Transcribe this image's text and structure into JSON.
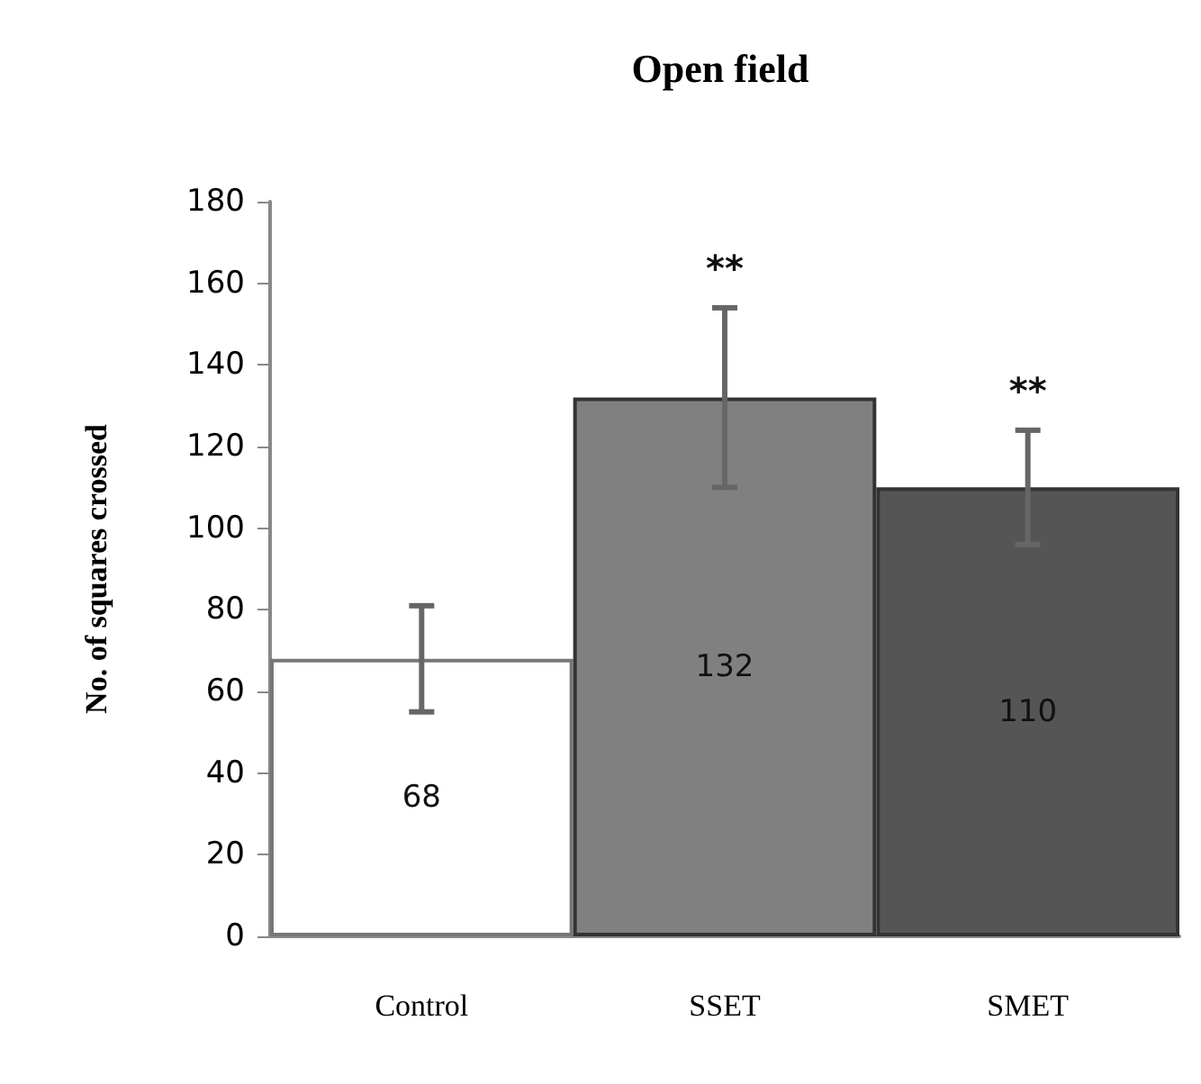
{
  "chart_data": {
    "type": "bar",
    "title": "Open field",
    "ylabel": "No. of squares crossed",
    "categories": [
      "Control",
      "SSET",
      "SMET"
    ],
    "values": [
      68,
      132,
      110
    ],
    "colors": [
      "#ffffff",
      "#808080",
      "#555555"
    ],
    "errors": [
      13,
      22,
      14
    ],
    "data_labels": true,
    "ylim": [
      0,
      180
    ],
    "yticks": [
      0,
      20,
      40,
      60,
      80,
      100,
      120,
      140,
      160,
      180
    ],
    "grid": false,
    "annotations": [
      "**",
      "**"
    ]
  }
}
